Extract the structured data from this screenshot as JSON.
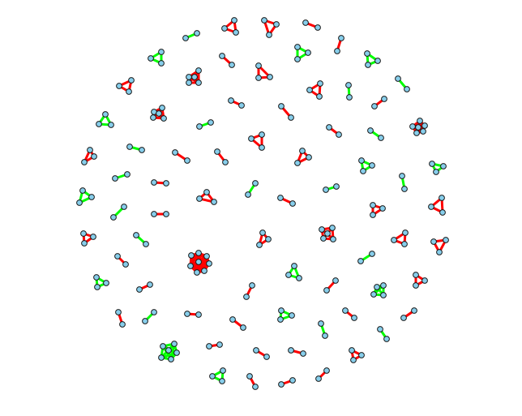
{
  "colors": {
    "background": "#ffffff",
    "edge_red": "#ff0000",
    "edge_green": "#00ff00",
    "node_fill": "#87ceeb",
    "node_stroke": "#1a1a1a"
  },
  "graph": {
    "description_kind": "network of disconnected components",
    "component_colors": [
      "red",
      "green"
    ]
  }
}
